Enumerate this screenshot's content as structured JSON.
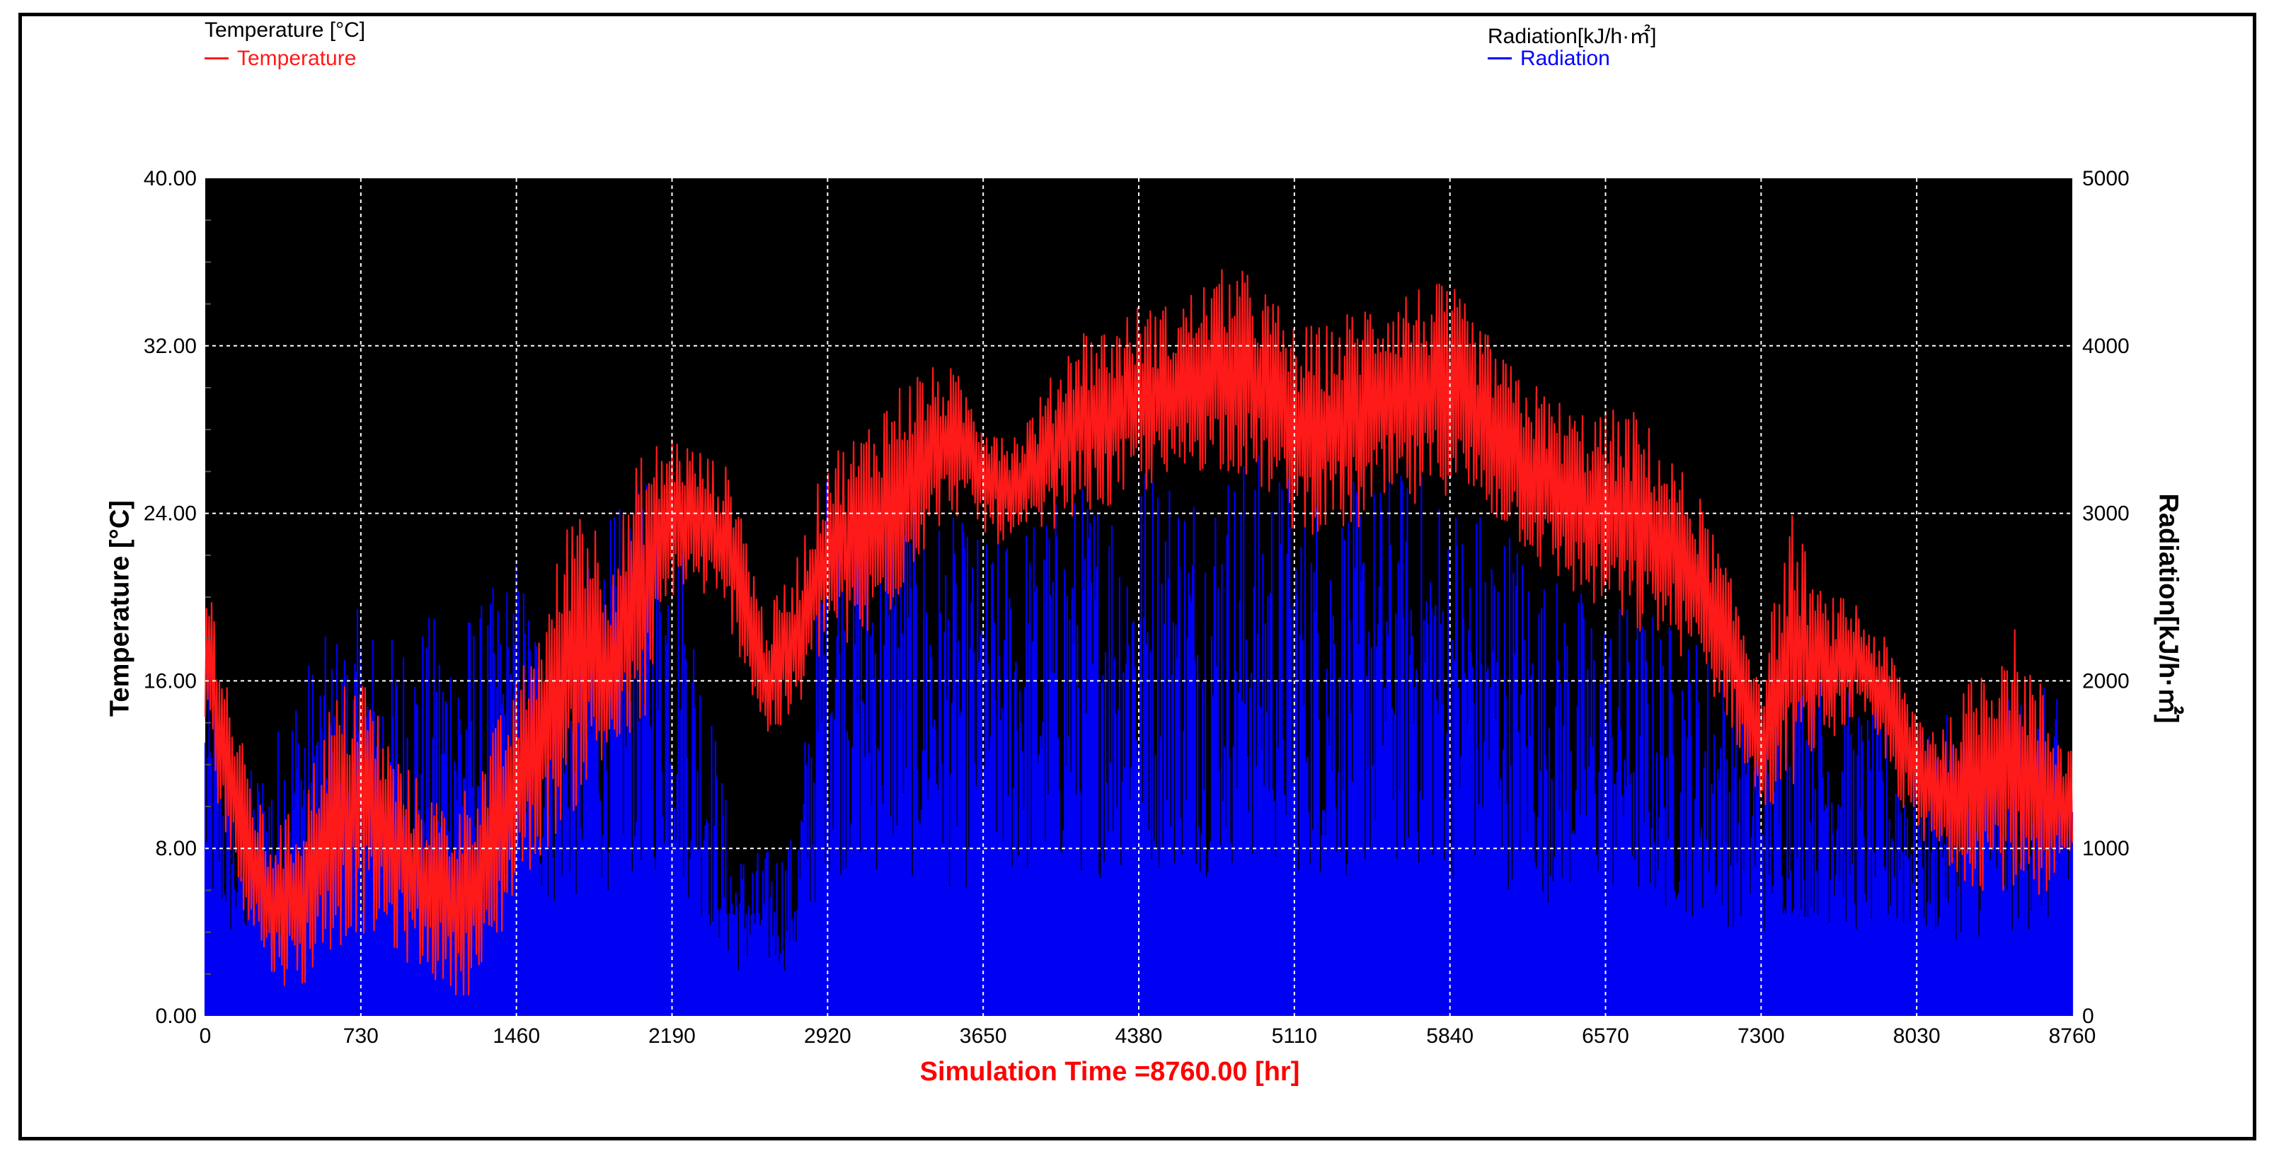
{
  "legend": {
    "left_title": "Temperature [°C]",
    "left_entry": "Temperature",
    "right_title": "Radiation[kJ/h·㎡]",
    "right_entry": "Radiation"
  },
  "simulation_label": "Simulation Time =8760.00 [hr]",
  "colors": {
    "plot_background": "#000000",
    "grid": "#ffffff",
    "temperature": "#ff1a1a",
    "radiation": "#0000ff"
  },
  "chart_data": {
    "type": "line",
    "title": "",
    "xlabel": "",
    "ylabel": "Temperature [°C]",
    "y2label": "Radiation[kJ/h·㎡]",
    "xlim": [
      0,
      8760
    ],
    "ylim": [
      0,
      40
    ],
    "y2lim": [
      0,
      5000
    ],
    "grid": true,
    "legend_placement": "top",
    "x_ticks": [
      "0",
      "730",
      "1460",
      "2190",
      "2920",
      "3650",
      "4380",
      "5110",
      "5840",
      "6570",
      "7300",
      "8030",
      "8760"
    ],
    "y_ticks": [
      "0.00",
      "8.00",
      "16.00",
      "24.00",
      "32.00",
      "40.00"
    ],
    "y2_ticks": [
      "0",
      "1000",
      "2000",
      "3000",
      "4000",
      "5000"
    ],
    "series": [
      {
        "name": "Temperature",
        "axis": "left",
        "x": [
          0,
          146,
          292,
          438,
          584,
          730,
          876,
          1022,
          1168,
          1314,
          1460,
          1606,
          1752,
          1898,
          2044,
          2190,
          2336,
          2482,
          2628,
          2774,
          2920,
          3066,
          3212,
          3358,
          3504,
          3650,
          3796,
          3942,
          4088,
          4234,
          4380,
          4526,
          4672,
          4818,
          4964,
          5110,
          5256,
          5402,
          5548,
          5694,
          5840,
          5986,
          6132,
          6278,
          6424,
          6570,
          6716,
          6862,
          7008,
          7154,
          7300,
          7446,
          7592,
          7738,
          7884,
          8030,
          8176,
          8322,
          8468,
          8614,
          8760
        ],
        "low": [
          13,
          6,
          2,
          1,
          3,
          4,
          3,
          2,
          1,
          1,
          6,
          8,
          10,
          12,
          13,
          20,
          20,
          18,
          13,
          14,
          18,
          17,
          19,
          22,
          24,
          23,
          22,
          23,
          24,
          24,
          25,
          25,
          26,
          26,
          25,
          23,
          23,
          23,
          24,
          24,
          25,
          24,
          23,
          21,
          20,
          19,
          18,
          18,
          16,
          14,
          9,
          11,
          13,
          14,
          12,
          8,
          7,
          6,
          6,
          4,
          7
        ],
        "high": [
          22,
          14,
          9,
          10,
          15,
          17,
          13,
          11,
          10,
          13,
          16,
          20,
          26,
          22,
          27,
          28,
          27,
          26,
          19,
          22,
          27,
          28,
          30,
          31,
          31,
          29,
          28,
          30,
          33,
          33,
          34,
          34,
          35,
          36,
          35,
          33,
          33,
          34,
          35,
          35,
          35,
          33,
          31,
          30,
          29,
          29,
          29,
          27,
          25,
          21,
          17,
          24,
          20,
          20,
          18,
          15,
          14,
          17,
          19,
          16,
          13
        ]
      },
      {
        "name": "Radiation",
        "axis": "right",
        "x": [
          0,
          146,
          292,
          438,
          584,
          730,
          876,
          1022,
          1168,
          1314,
          1460,
          1606,
          1752,
          1898,
          2044,
          2190,
          2336,
          2482,
          2628,
          2774,
          2920,
          3066,
          3212,
          3358,
          3504,
          3650,
          3796,
          3942,
          4088,
          4234,
          4380,
          4526,
          4672,
          4818,
          4964,
          5110,
          5256,
          5402,
          5548,
          5694,
          5840,
          5986,
          6132,
          6278,
          6424,
          6570,
          6716,
          6862,
          7008,
          7154,
          7300,
          7446,
          7592,
          7738,
          7884,
          8030,
          8176,
          8322,
          8468,
          8614,
          8760
        ],
        "peak": [
          2200,
          1400,
          1600,
          2100,
          2300,
          2450,
          2300,
          2400,
          2450,
          2500,
          2800,
          2400,
          2600,
          3000,
          3200,
          3300,
          2200,
          1000,
          1000,
          1100,
          3400,
          3200,
          3300,
          3100,
          3000,
          2900,
          3000,
          3100,
          3200,
          3300,
          3400,
          3400,
          3300,
          3400,
          3400,
          3300,
          3200,
          3200,
          3300,
          3300,
          3200,
          3100,
          3000,
          2700,
          2600,
          2500,
          2500,
          2400,
          2300,
          2100,
          1800,
          2300,
          2200,
          1900,
          1800,
          1700,
          1800,
          1800,
          1900,
          2000,
          1800
        ]
      }
    ]
  }
}
